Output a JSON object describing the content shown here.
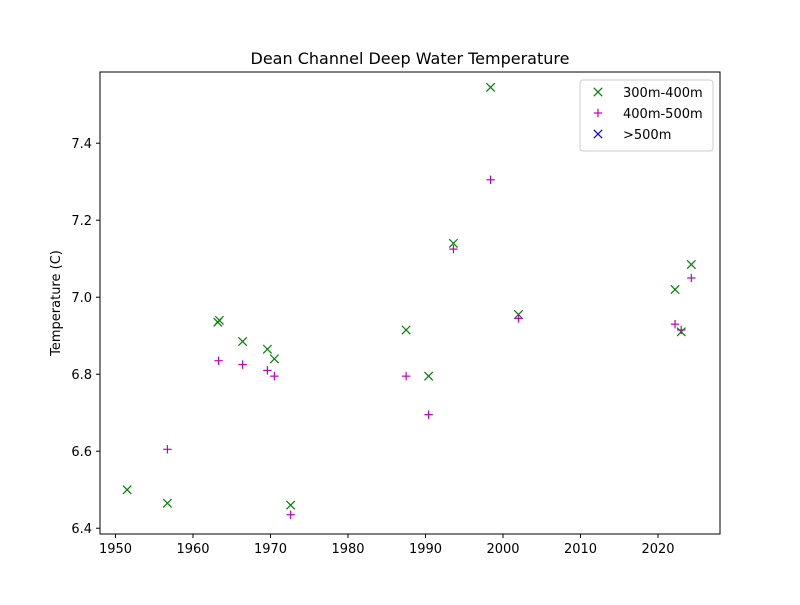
{
  "chart_data": {
    "type": "scatter",
    "title": "Dean Channel Deep Water Temperature",
    "xlabel": "",
    "ylabel": "Temperature (C)",
    "xlim": [
      1948,
      2028
    ],
    "ylim": [
      6.385,
      7.585
    ],
    "xticks": [
      1950,
      1960,
      1970,
      1980,
      1990,
      2000,
      2010,
      2020
    ],
    "yticks": [
      6.4,
      6.6,
      6.8,
      7.0,
      7.2,
      7.4
    ],
    "ytick_labels": [
      "6.4",
      "6.6",
      "6.8",
      "7.0",
      "7.2",
      "7.4"
    ],
    "grid": false,
    "legend_position": "top-right",
    "series": [
      {
        "name": "300m-400m",
        "marker": "x",
        "color": "#008000",
        "points": [
          [
            1951.5,
            6.5
          ],
          [
            1956.7,
            6.465
          ],
          [
            1963.2,
            6.935
          ],
          [
            1963.4,
            6.94
          ],
          [
            1966.4,
            6.885
          ],
          [
            1969.6,
            6.865
          ],
          [
            1970.5,
            6.84
          ],
          [
            1972.6,
            6.46
          ],
          [
            1987.5,
            6.915
          ],
          [
            1990.4,
            6.795
          ],
          [
            1993.6,
            7.14
          ],
          [
            1998.4,
            7.545
          ],
          [
            2002.0,
            6.955
          ],
          [
            2022.2,
            7.02
          ],
          [
            2023.0,
            6.91
          ],
          [
            2024.3,
            7.085
          ]
        ]
      },
      {
        "name": "400m-500m",
        "marker": "+",
        "color": "#bf00bf",
        "points": [
          [
            1956.7,
            6.605
          ],
          [
            1963.3,
            6.835
          ],
          [
            1966.4,
            6.825
          ],
          [
            1969.6,
            6.81
          ],
          [
            1970.5,
            6.795
          ],
          [
            1972.6,
            6.435
          ],
          [
            1987.5,
            6.795
          ],
          [
            1990.4,
            6.695
          ],
          [
            1993.6,
            7.125
          ],
          [
            1998.4,
            7.305
          ],
          [
            2002.0,
            6.945
          ],
          [
            2022.2,
            6.93
          ],
          [
            2023.0,
            6.915
          ],
          [
            2024.3,
            7.05
          ]
        ]
      },
      {
        "name": ">500m",
        "marker": "x",
        "color": "#0000ff",
        "points": []
      }
    ]
  }
}
